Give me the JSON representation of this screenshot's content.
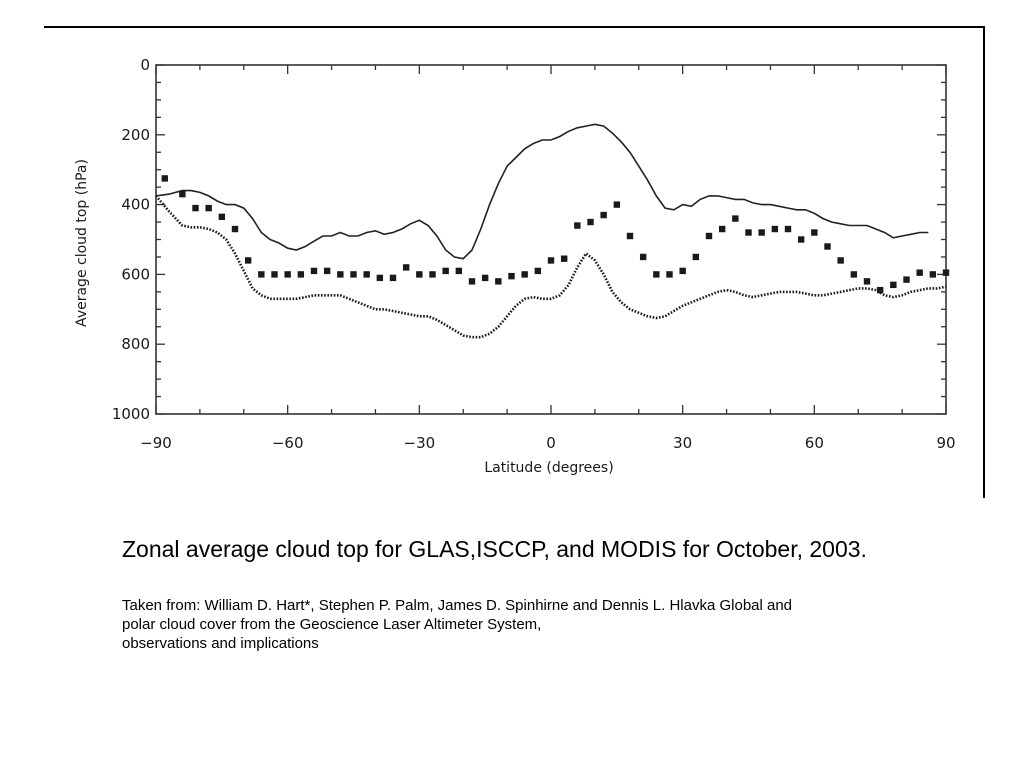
{
  "caption": "Zonal average cloud top for GLAS,ISCCP, and MODIS for October, 2003.",
  "source": {
    "line1": "Taken from: William D. Hart*, Stephen P. Palm, James D. Spinhirne and Dennis L. Hlavka Global and",
    "line2": "polar cloud cover from the Geoscience Laser Altimeter System,",
    "line3": "observations and implications"
  },
  "chart_data": {
    "type": "line",
    "title": "",
    "xlabel": "Latitude (degrees)",
    "ylabel": "Average cloud top (hPa)",
    "xlim": [
      -90,
      90
    ],
    "ylim": [
      0,
      1000
    ],
    "y_inverted": true,
    "grid": false,
    "legend": "none",
    "x_ticks": [
      -90,
      -60,
      -30,
      0,
      30,
      60,
      90
    ],
    "x_tick_labels": [
      "−90",
      "−60",
      "−30",
      "0",
      "30",
      "60",
      "90"
    ],
    "y_ticks": [
      0,
      200,
      400,
      600,
      800,
      1000
    ],
    "y_tick_labels": [
      "0",
      "200",
      "400",
      "600",
      "800",
      "1000"
    ],
    "series": [
      {
        "style": "solid-line",
        "x": [
          -90,
          -87,
          -84,
          -82,
          -80,
          -78,
          -76,
          -74,
          -72,
          -70,
          -68,
          -66,
          -64,
          -62,
          -60,
          -58,
          -56,
          -54,
          -52,
          -50,
          -48,
          -46,
          -44,
          -42,
          -40,
          -38,
          -36,
          -34,
          -32,
          -30,
          -28,
          -26,
          -24,
          -22,
          -20,
          -18,
          -16,
          -14,
          -12,
          -10,
          -8,
          -6,
          -4,
          -2,
          0,
          2,
          4,
          6,
          8,
          10,
          12,
          14,
          16,
          18,
          20,
          22,
          24,
          26,
          28,
          30,
          32,
          34,
          36,
          38,
          40,
          42,
          44,
          46,
          48,
          50,
          52,
          54,
          56,
          58,
          60,
          62,
          64,
          66,
          68,
          70,
          72,
          74,
          76,
          78,
          80,
          82,
          84,
          86
        ],
        "y": [
          375,
          370,
          360,
          360,
          365,
          375,
          390,
          400,
          400,
          410,
          440,
          480,
          500,
          510,
          525,
          530,
          520,
          505,
          490,
          490,
          480,
          490,
          490,
          480,
          475,
          485,
          480,
          470,
          455,
          445,
          460,
          490,
          530,
          550,
          555,
          530,
          470,
          400,
          340,
          290,
          265,
          240,
          225,
          215,
          215,
          205,
          190,
          180,
          175,
          170,
          175,
          195,
          220,
          250,
          290,
          330,
          375,
          410,
          415,
          400,
          405,
          385,
          375,
          375,
          380,
          385,
          385,
          395,
          400,
          400,
          405,
          410,
          415,
          415,
          425,
          440,
          450,
          455,
          460,
          460,
          460,
          470,
          480,
          495,
          490,
          485,
          480,
          480
        ]
      },
      {
        "style": "square-markers",
        "x": [
          -88,
          -84,
          -81,
          -78,
          -75,
          -72,
          -69,
          -66,
          -63,
          -60,
          -57,
          -54,
          -51,
          -48,
          -45,
          -42,
          -39,
          -36,
          -33,
          -30,
          -27,
          -24,
          -21,
          -18,
          -15,
          -12,
          -9,
          -6,
          -3,
          0,
          3,
          6,
          9,
          12,
          15,
          18,
          21,
          24,
          27,
          30,
          33,
          36,
          39,
          42,
          45,
          48,
          51,
          54,
          57,
          60,
          63,
          66,
          69,
          72,
          75,
          78,
          81,
          84,
          87,
          90
        ],
        "y": [
          325,
          370,
          410,
          410,
          435,
          470,
          560,
          600,
          600,
          600,
          600,
          590,
          590,
          600,
          600,
          600,
          610,
          610,
          580,
          600,
          600,
          590,
          590,
          620,
          610,
          620,
          605,
          600,
          590,
          560,
          555,
          460,
          450,
          430,
          400,
          490,
          550,
          600,
          600,
          590,
          550,
          490,
          470,
          440,
          480,
          480,
          470,
          470,
          500,
          480,
          520,
          560,
          600,
          620,
          645,
          630,
          615,
          595,
          600,
          595
        ]
      },
      {
        "style": "dotted-line",
        "x": [
          -90,
          -87,
          -84,
          -82,
          -80,
          -78,
          -76,
          -74,
          -72,
          -70,
          -68,
          -66,
          -64,
          -62,
          -60,
          -58,
          -56,
          -54,
          -52,
          -50,
          -48,
          -46,
          -44,
          -42,
          -40,
          -38,
          -36,
          -34,
          -32,
          -30,
          -28,
          -26,
          -24,
          -22,
          -20,
          -18,
          -16,
          -14,
          -12,
          -10,
          -8,
          -6,
          -4,
          -2,
          0,
          2,
          4,
          6,
          8,
          10,
          12,
          14,
          16,
          18,
          20,
          22,
          24,
          26,
          28,
          30,
          32,
          34,
          36,
          38,
          40,
          42,
          44,
          46,
          48,
          50,
          52,
          54,
          56,
          58,
          60,
          62,
          64,
          66,
          68,
          70,
          72,
          74,
          76,
          78,
          80,
          82,
          84,
          86,
          88,
          90
        ],
        "y": [
          375,
          420,
          460,
          465,
          465,
          470,
          480,
          500,
          540,
          590,
          640,
          660,
          670,
          670,
          670,
          670,
          665,
          660,
          660,
          660,
          660,
          670,
          680,
          690,
          700,
          700,
          705,
          710,
          715,
          720,
          720,
          730,
          745,
          760,
          775,
          780,
          780,
          770,
          750,
          720,
          690,
          670,
          665,
          670,
          670,
          660,
          630,
          580,
          540,
          560,
          600,
          650,
          680,
          700,
          710,
          720,
          725,
          720,
          705,
          690,
          680,
          670,
          660,
          650,
          645,
          650,
          660,
          665,
          660,
          655,
          650,
          650,
          650,
          655,
          660,
          660,
          655,
          650,
          645,
          640,
          640,
          645,
          660,
          665,
          660,
          650,
          645,
          640,
          640,
          635
        ]
      }
    ]
  }
}
